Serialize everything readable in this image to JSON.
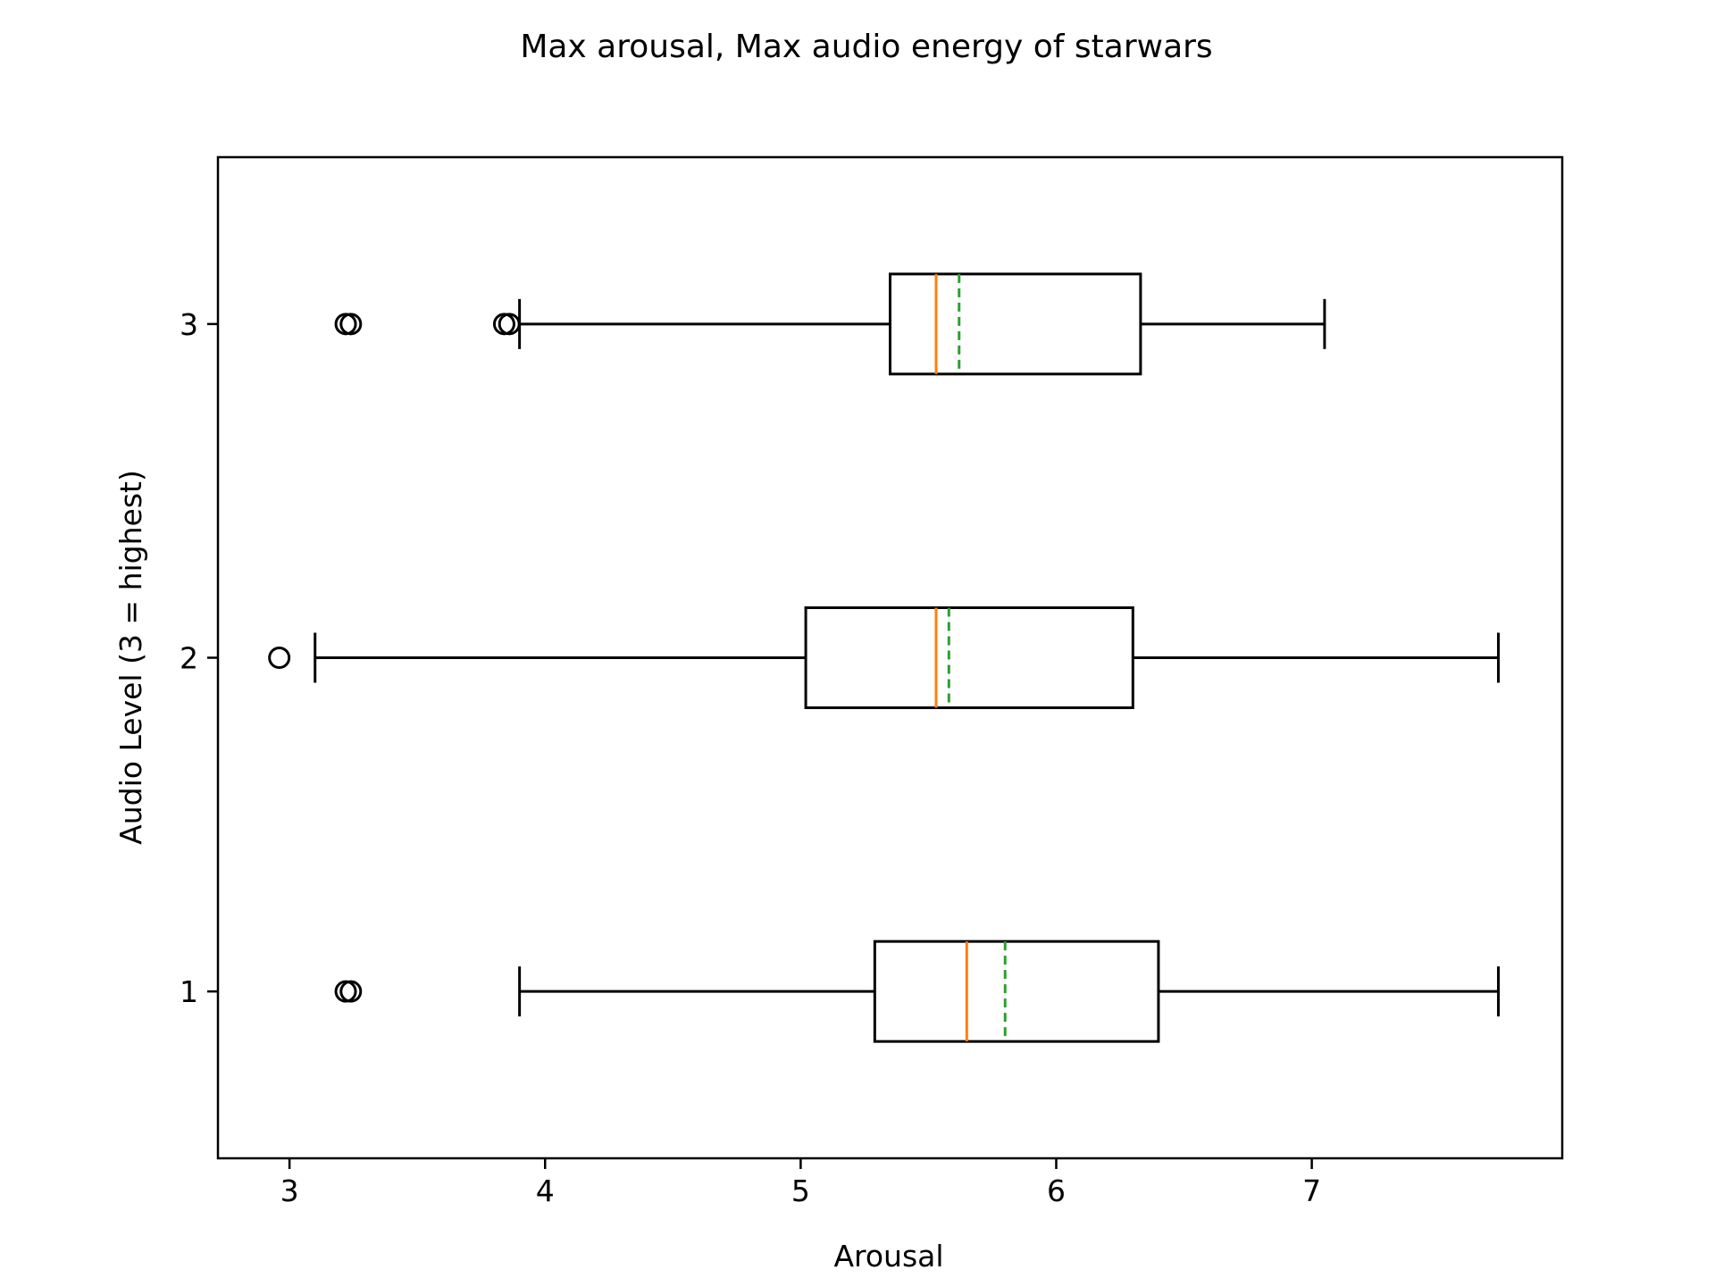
{
  "chart_data": {
    "type": "boxplot",
    "orientation": "horizontal",
    "title": "Max arousal, Max audio energy of starwars",
    "xlabel": "Arousal",
    "ylabel": "Audio Level (3 = highest)",
    "xlim": [
      2.72,
      7.98
    ],
    "ylim": [
      0.5,
      3.5
    ],
    "xticks": [
      3,
      4,
      5,
      6,
      7
    ],
    "xtick_labels": [
      "3",
      "4",
      "5",
      "6",
      "7"
    ],
    "yticks": [
      1,
      2,
      3
    ],
    "ytick_labels": [
      "1",
      "2",
      "3"
    ],
    "grid": false,
    "colors": {
      "box": "#000000",
      "median": "#ff7f0e",
      "mean": "#2ca02c"
    },
    "boxes": [
      {
        "level": 1,
        "whisker_low": 3.9,
        "q1": 5.29,
        "median": 5.65,
        "mean": 5.8,
        "q3": 6.4,
        "whisker_high": 7.73,
        "outliers": [
          3.22,
          3.24
        ]
      },
      {
        "level": 2,
        "whisker_low": 3.1,
        "q1": 5.02,
        "median": 5.53,
        "mean": 5.58,
        "q3": 6.3,
        "whisker_high": 7.73,
        "outliers": [
          2.96
        ]
      },
      {
        "level": 3,
        "whisker_low": 3.9,
        "q1": 5.35,
        "median": 5.53,
        "mean": 5.62,
        "q3": 6.33,
        "whisker_high": 7.05,
        "outliers": [
          3.22,
          3.24,
          3.84,
          3.86
        ]
      }
    ]
  }
}
